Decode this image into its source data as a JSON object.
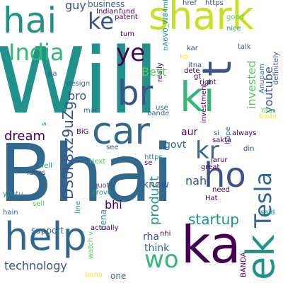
{
  "background": "#ffffff",
  "palette": [
    "#440154",
    "#3b528b",
    "#21918c",
    "#5ec962",
    "#fde725",
    "#31688e",
    "#35b779"
  ],
  "words": [
    {
      "text": "Will"
    },
    {
      "text": "Bhai"
    },
    {
      "text": "shark"
    },
    {
      "text": "hai"
    },
    {
      "text": "help"
    },
    {
      "text": "ka"
    },
    {
      "text": "ek"
    },
    {
      "text": "Tesla"
    },
    {
      "text": "car"
    },
    {
      "text": "br"
    },
    {
      "text": "ki"
    },
    {
      "text": "t"
    },
    {
      "text": "India"
    },
    {
      "text": "ho"
    },
    {
      "text": "kr"
    },
    {
      "text": "ye"
    },
    {
      "text": "ke"
    },
    {
      "text": "wo"
    },
    {
      "text": "DS0k8xz9uZg"
    },
    {
      "text": "startup"
    },
    {
      "text": "product"
    },
    {
      "text": "invested"
    },
    {
      "text": "youtube"
    },
    {
      "text": "dream"
    },
    {
      "text": "technology"
    },
    {
      "text": "guy"
    },
    {
      "text": "Best"
    },
    {
      "text": "bro"
    },
    {
      "text": "bhi"
    },
    {
      "text": "nahi"
    },
    {
      "text": "know"
    },
    {
      "text": "think"
    },
    {
      "text": "rha"
    },
    {
      "text": "aur"
    },
    {
      "text": "govt"
    },
    {
      "text": "business"
    },
    {
      "text": "href"
    },
    {
      "text": "https"
    },
    {
      "text": "nA6V0_W84mK"
    },
    {
      "text": "patent"
    },
    {
      "text": "fund"
    },
    {
      "text": "Indian"
    },
    {
      "text": "good"
    },
    {
      "text": "nice"
    },
    {
      "text": "tum"
    },
    {
      "text": "kar"
    },
    {
      "text": "talk"
    },
    {
      "text": "definitely"
    },
    {
      "text": "ko"
    },
    {
      "text": "itna"
    },
    {
      "text": "dete"
    },
    {
      "text": "gt"
    },
    {
      "text": "right"
    },
    {
      "text": "Anupam"
    },
    {
      "text": "investment"
    },
    {
      "text": "Yaar"
    },
    {
      "text": "bada"
    },
    {
      "text": "always"
    },
    {
      "text": "si"
    },
    {
      "text": "sakta"
    },
    {
      "text": "din"
    },
    {
      "text": "hope"
    },
    {
      "text": "jarur"
    },
    {
      "text": "great"
    },
    {
      "text": "need"
    },
    {
      "text": "Hat"
    },
    {
      "text": "said"
    },
    {
      "text": "support"
    },
    {
      "text": "actually"
    },
    {
      "text": "nhi"
    },
    {
      "text": "one"
    },
    {
      "text": "BANDA"
    },
    {
      "text": "watch v"
    },
    {
      "text": "bana"
    },
    {
      "text": "hain"
    },
    {
      "text": "youtu"
    },
    {
      "text": "sell"
    },
    {
      "text": "line"
    },
    {
      "text": "Prove"
    },
    {
      "text": "quot"
    },
    {
      "text": "Next"
    },
    {
      "text": "well"
    },
    {
      "text": "ideas"
    },
    {
      "text": "see"
    },
    {
      "text": "BiG"
    },
    {
      "text": "mat"
    },
    {
      "text": "bande"
    },
    {
      "text": "use"
    },
    {
      "text": "design"
    },
    {
      "text": "really"
    },
    {
      "text": "pa"
    },
    {
      "text": "s"
    },
    {
      "text": "dena"
    },
    {
      "text": "se"
    }
  ]
}
